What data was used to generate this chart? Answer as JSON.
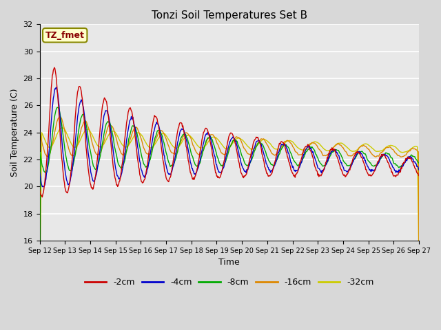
{
  "title": "Tonzi Soil Temperatures Set B",
  "xlabel": "Time",
  "ylabel": "Soil Temperature (C)",
  "ylim": [
    16,
    32
  ],
  "yticks": [
    16,
    18,
    20,
    22,
    24,
    26,
    28,
    30,
    32
  ],
  "annotation_text": "TZ_fmet",
  "annotation_color": "#880000",
  "annotation_bg": "#ffffcc",
  "annotation_border": "#888800",
  "series_colors": [
    "#cc0000",
    "#0000cc",
    "#00aa00",
    "#dd8800",
    "#cccc00"
  ],
  "series_labels": [
    "-2cm",
    "-4cm",
    "-8cm",
    "-16cm",
    "-32cm"
  ],
  "plot_bg": "#e8e8e8",
  "grid_color": "#ffffff",
  "fig_bg": "#d8d8d8"
}
